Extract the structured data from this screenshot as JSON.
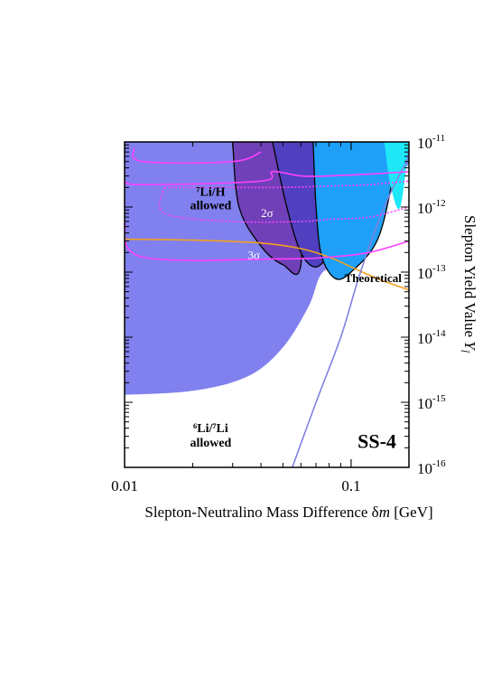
{
  "chart_data": {
    "type": "area",
    "title": "",
    "xlabel": "Slepton-Neutralino Mass Difference  δm [GeV]",
    "xlabel_parts": {
      "main": "Slepton-Neutralino Mass Difference",
      "symbol": "δ",
      "var": "m",
      "unit": "[GeV]"
    },
    "ylabel": "Slepton Yield Value  Y",
    "ylabel_parts": {
      "main": "Slepton Yield Value",
      "var": "Y",
      "sub": "l̃"
    },
    "x_scale": "log",
    "y_scale": "log",
    "xlim": [
      0.01,
      0.18
    ],
    "ylim": [
      1e-16,
      1e-11
    ],
    "x_ticks": [
      {
        "value": 0.01,
        "label": "0.01"
      },
      {
        "value": 0.1,
        "label": "0.1"
      }
    ],
    "y_ticks": [
      {
        "value": 1e-11,
        "base": "10",
        "exp": "-11"
      },
      {
        "value": 1e-12,
        "base": "10",
        "exp": "-12"
      },
      {
        "value": 1e-13,
        "base": "10",
        "exp": "-13"
      },
      {
        "value": 1e-14,
        "base": "10",
        "exp": "-14"
      },
      {
        "value": 1e-15,
        "base": "10",
        "exp": "-15"
      },
      {
        "value": 1e-16,
        "base": "10",
        "exp": "-16"
      }
    ],
    "regions": [
      {
        "kind": "fill",
        "color": "#8080ee",
        "points": [
          [
            0.01,
            1.3e-15
          ],
          [
            0.02,
            1.5e-15
          ],
          [
            0.035,
            2.5e-15
          ],
          [
            0.05,
            7e-15
          ],
          [
            0.065,
            3e-14
          ],
          [
            0.075,
            1e-13
          ],
          [
            0.1,
            1.5e-13
          ],
          [
            0.13,
            1e-12
          ],
          [
            0.155,
            1e-11
          ],
          [
            0.01,
            1e-11
          ]
        ]
      },
      {
        "kind": "fill",
        "color": "#7040b8",
        "stroke": "#000000",
        "points": [
          [
            0.03,
            1e-11
          ],
          [
            0.032,
            1e-12
          ],
          [
            0.04,
            2.5e-13
          ],
          [
            0.05,
            1.3e-13
          ],
          [
            0.06,
            1.3e-13
          ],
          [
            0.06,
            1e-11
          ]
        ]
      },
      {
        "kind": "fill",
        "color": "#5040c0",
        "stroke": "#000000",
        "points": [
          [
            0.045,
            1e-11
          ],
          [
            0.052,
            1e-12
          ],
          [
            0.06,
            2e-13
          ],
          [
            0.07,
            1.2e-13
          ],
          [
            0.08,
            2.2e-13
          ],
          [
            0.085,
            1e-12
          ],
          [
            0.09,
            1e-11
          ]
        ]
      },
      {
        "kind": "fill",
        "color": "#1ea0f8",
        "stroke": "#000000",
        "points": [
          [
            0.068,
            1e-11
          ],
          [
            0.07,
            1e-12
          ],
          [
            0.074,
            1.8e-13
          ],
          [
            0.085,
            8e-14
          ],
          [
            0.1,
            1e-13
          ],
          [
            0.13,
            3e-13
          ],
          [
            0.15,
            2e-12
          ],
          [
            0.16,
            1e-11
          ]
        ]
      },
      {
        "kind": "fill",
        "color": "#1ee8f8",
        "points": [
          [
            0.14,
            1e-11
          ],
          [
            0.15,
            2e-12
          ],
          [
            0.165,
            1e-12
          ],
          [
            0.18,
            1e-11
          ]
        ]
      }
    ],
    "series": [
      {
        "kind": "line",
        "color": "#f2a020",
        "x": [
          0.01,
          0.02,
          0.04,
          0.06,
          0.08,
          0.1,
          0.13,
          0.18
        ],
        "y": [
          3.2e-13,
          3.1e-13,
          2.8e-13,
          2.3e-13,
          1.7e-13,
          1.2e-13,
          8e-14,
          5.3e-14
        ]
      },
      {
        "kind": "line",
        "color": "#8080e0",
        "x": [
          0.055,
          0.07,
          0.09,
          0.11,
          0.14,
          0.18
        ],
        "y": [
          1e-16,
          1e-15,
          1e-14,
          1e-13,
          1e-12,
          6e-12
        ]
      },
      {
        "kind": "line",
        "color": "#ff40ff",
        "dashed": true,
        "x": [
          0.015,
          0.015,
          0.03,
          0.06,
          0.08,
          0.12,
          0.18
        ],
        "y": [
          2e-12,
          8e-13,
          6e-13,
          6e-13,
          6.5e-13,
          7e-13,
          1e-12
        ]
      },
      {
        "kind": "line",
        "color": "#ff40ff",
        "dashed": true,
        "x": [
          0.015,
          0.03,
          0.05,
          0.08,
          0.12,
          0.18
        ],
        "y": [
          2e-12,
          2e-12,
          2e-12,
          2.1e-12,
          2.2e-12,
          2.5e-12
        ]
      },
      {
        "kind": "line",
        "color": "#ff40ff",
        "x": [
          0.01,
          0.012,
          0.05,
          0.08,
          0.12,
          0.18
        ],
        "y": [
          6e-13,
          1.7e-13,
          1.6e-13,
          1.7e-13,
          2e-13,
          3e-13
        ]
      },
      {
        "kind": "line",
        "color": "#ff40ff",
        "x": [
          0.01,
          0.012,
          0.04,
          0.045,
          0.06,
          0.08,
          0.12,
          0.18
        ],
        "y": [
          2.5e-12,
          2.2e-12,
          2.5e-12,
          3.5e-12,
          3e-12,
          3e-12,
          3.2e-12,
          3.5e-12
        ]
      },
      {
        "kind": "line",
        "color": "#ff40ff",
        "x": [
          0.011,
          0.012,
          0.03,
          0.04
        ],
        "y": [
          8e-12,
          5e-12,
          5e-12,
          7e-12
        ]
      }
    ],
    "annotations": [
      {
        "id": "li7",
        "lines": [
          "⁷Li/H",
          "allowed"
        ],
        "x": 0.024,
        "y": 1.5e-12,
        "color": "#000000",
        "bold": true
      },
      {
        "id": "sigma2",
        "text": "2σ",
        "x": 0.04,
        "y": 7e-13,
        "color": "#ffffff"
      },
      {
        "id": "sigma3",
        "text": "3σ",
        "x": 0.035,
        "y": 1.6e-13,
        "color": "#ffffff"
      },
      {
        "id": "theoretical",
        "text": "Theoretical",
        "x": 0.125,
        "y": 7e-14,
        "color": "#000000",
        "bold": true
      },
      {
        "id": "li6",
        "lines": [
          "⁶Li/⁷Li",
          "allowed"
        ],
        "x": 0.024,
        "y": 3.5e-16,
        "color": "#000000",
        "bold": true
      },
      {
        "id": "model",
        "text": "SS-4",
        "x": 0.13,
        "y": 2e-16,
        "color": "#000000",
        "bold": true
      }
    ],
    "grid": false,
    "legend": "none"
  }
}
